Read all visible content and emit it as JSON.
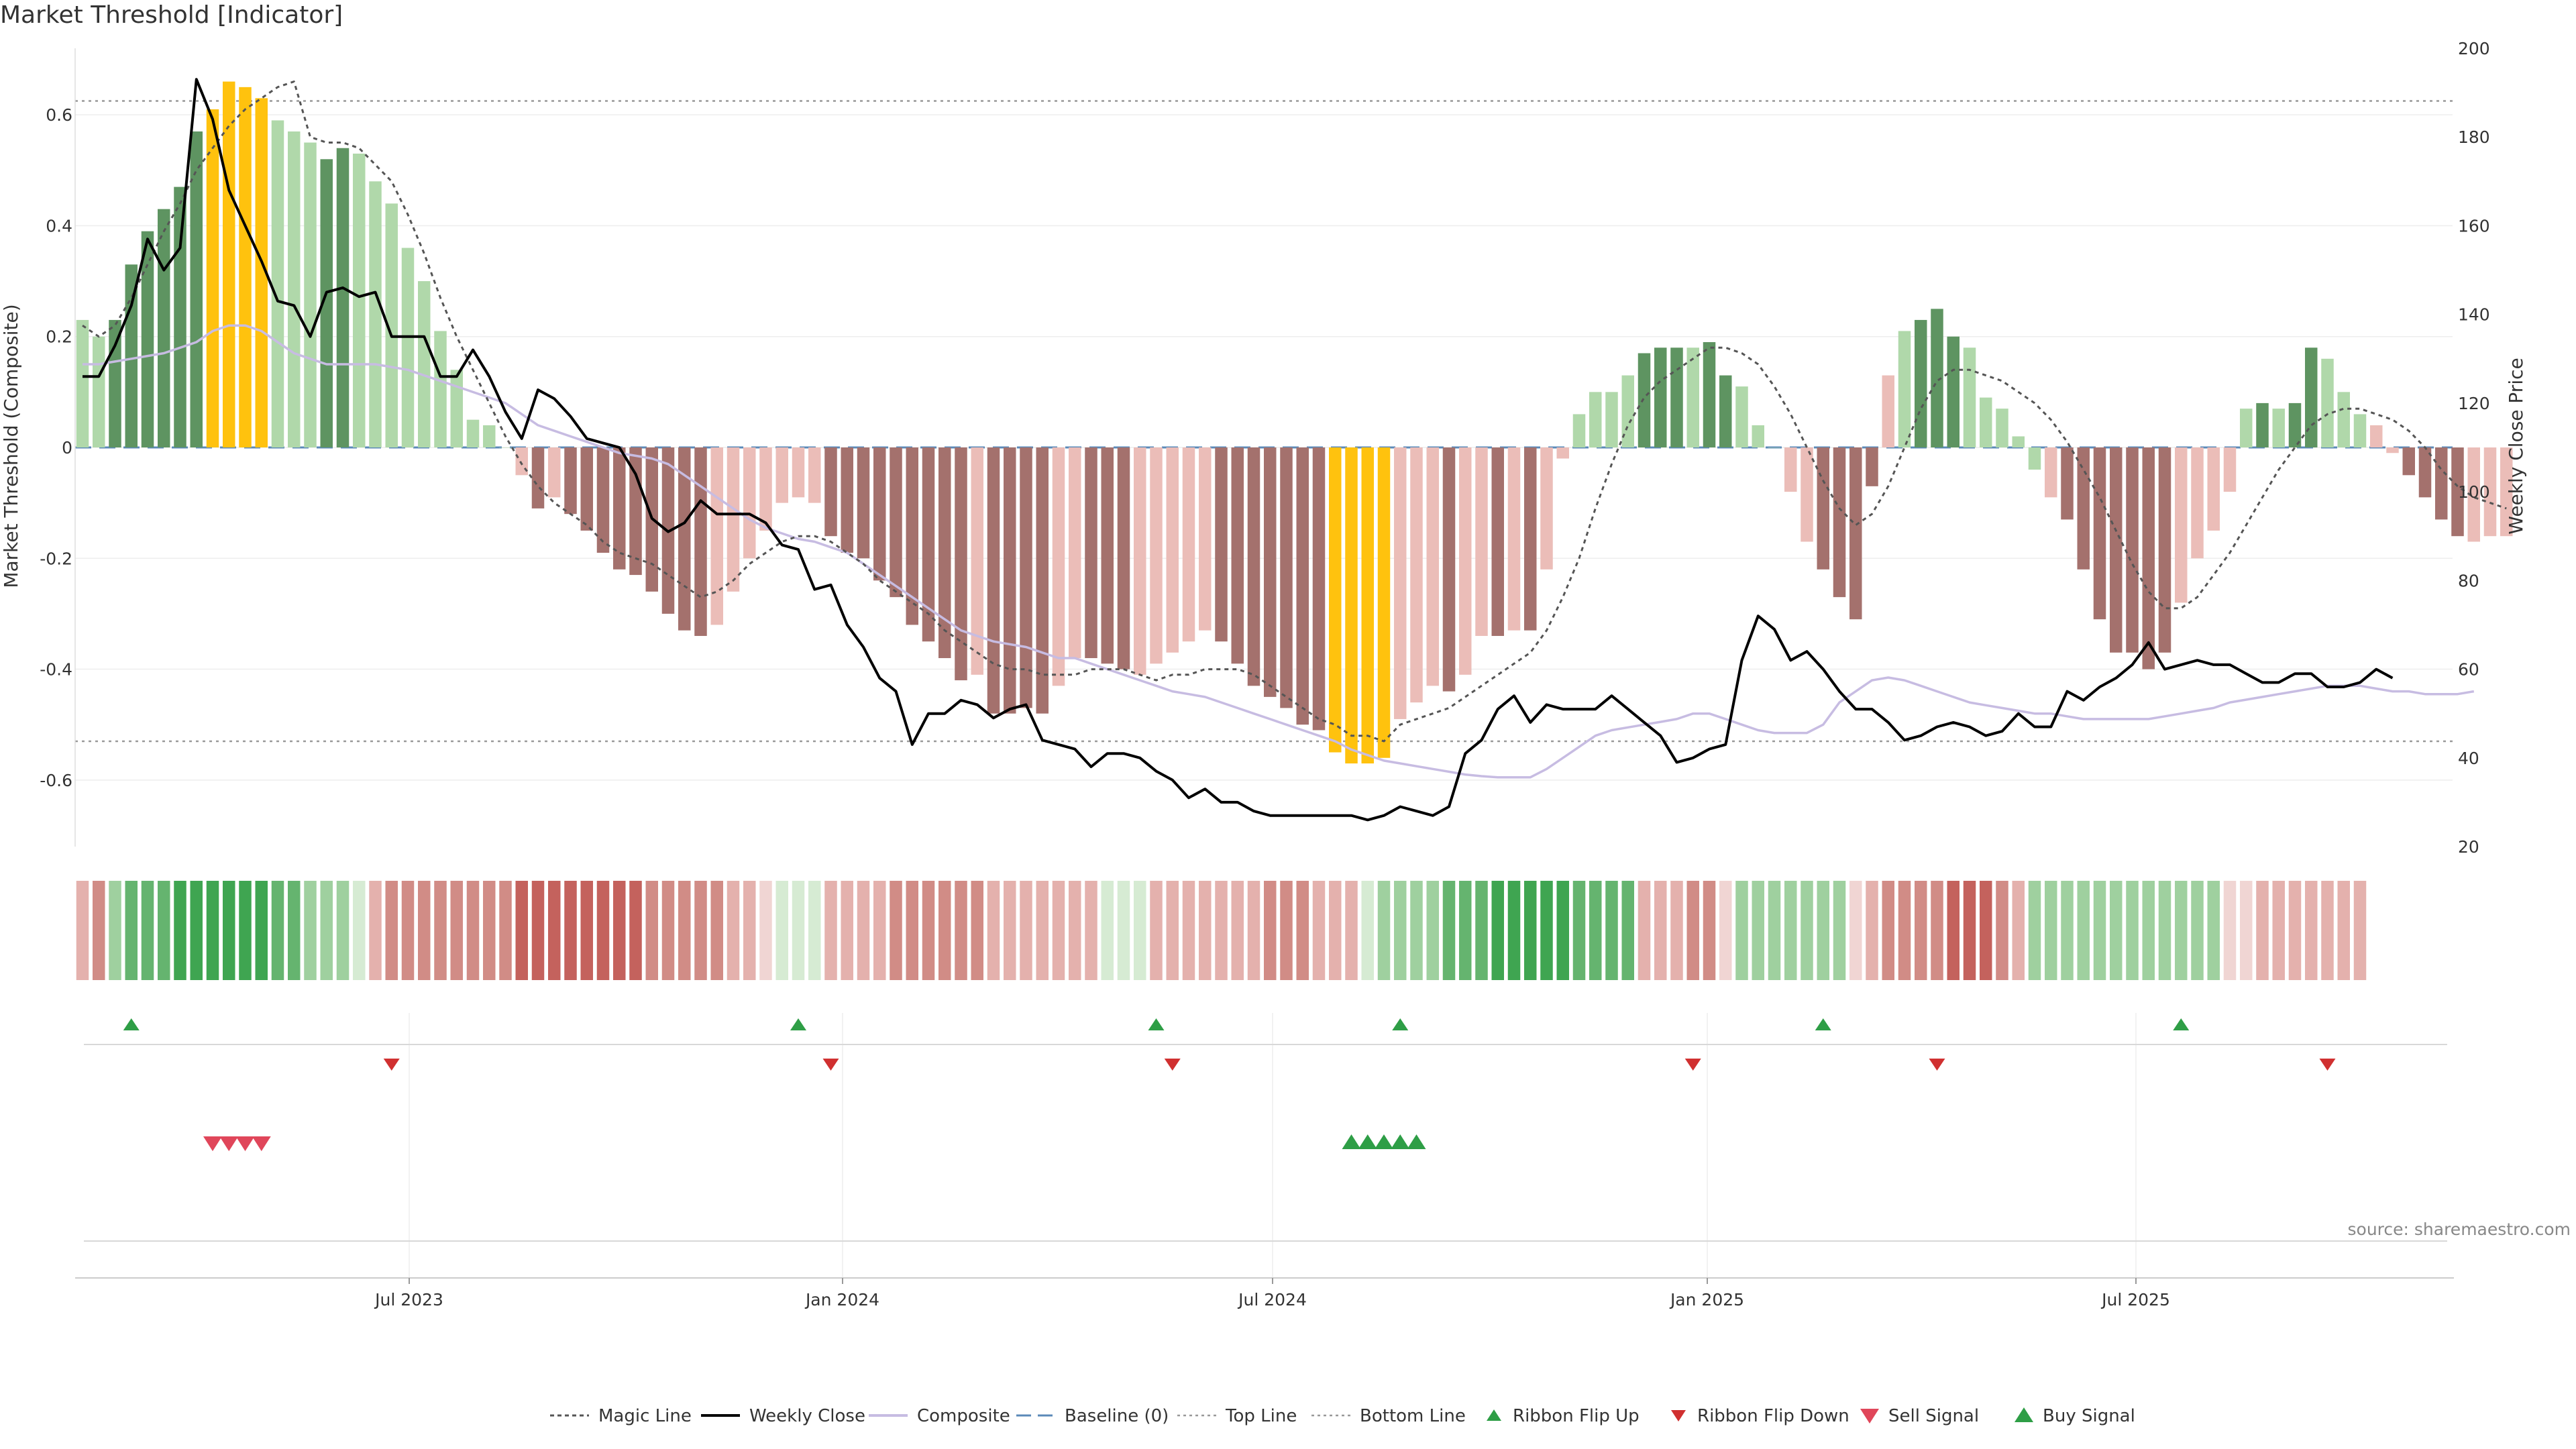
{
  "title": "Market Threshold [Indicator]",
  "source": "source: sharemaestro.com",
  "colors": {
    "background": "#ffffff",
    "grid": "#eeeeee",
    "bar_dark_green": "#5e9461",
    "bar_light_green": "#b0d8aa",
    "bar_dark_red": "#a4716d",
    "bar_light_red": "#ebbdb8",
    "bar_extreme": "#ffc20e",
    "weekly_close": "#000000",
    "composite": "#c7bce2",
    "magic_line": "#555555",
    "baseline": "#5b8ab8",
    "ribbon_up": "#2e9e46",
    "ribbon_down": "#d03030",
    "sell_signal": "#e0465a",
    "buy_signal": "#2e9e46"
  },
  "chart_data": {
    "type": "bar",
    "x_labels": [
      "Jul 2023",
      "Jan 2024",
      "Jul 2024",
      "Jan 2025",
      "Jul 2025"
    ],
    "ylabel": "Market Threshold (Composite)",
    "ylabel_right": "Weekly Close Price",
    "y_ticks": [
      "0.6",
      "0.4",
      "0.2",
      "0",
      "-0.2",
      "-0.4",
      "-0.6"
    ],
    "y_right_ticks": [
      "200",
      "180",
      "160",
      "140",
      "120",
      "100",
      "80",
      "60",
      "40",
      "20"
    ],
    "ylim": [
      -0.72,
      0.72
    ],
    "ylim_right": [
      20,
      200
    ],
    "top_line": 0.625,
    "bottom_line": -0.53,
    "grid": true,
    "bars": [
      0.23,
      0.2,
      0.23,
      0.33,
      0.39,
      0.43,
      0.47,
      0.57,
      0.61,
      0.66,
      0.65,
      0.63,
      0.59,
      0.57,
      0.55,
      0.52,
      0.54,
      0.53,
      0.48,
      0.44,
      0.36,
      0.3,
      0.21,
      0.14,
      0.05,
      0.04,
      0.0,
      -0.05,
      -0.11,
      -0.09,
      -0.12,
      -0.15,
      -0.19,
      -0.22,
      -0.23,
      -0.26,
      -0.3,
      -0.33,
      -0.34,
      -0.32,
      -0.26,
      -0.2,
      -0.15,
      -0.1,
      -0.09,
      -0.1,
      -0.16,
      -0.19,
      -0.2,
      -0.24,
      -0.27,
      -0.32,
      -0.35,
      -0.38,
      -0.42,
      -0.41,
      -0.48,
      -0.48,
      -0.47,
      -0.48,
      -0.43,
      -0.38,
      -0.38,
      -0.39,
      -0.4,
      -0.41,
      -0.39,
      -0.37,
      -0.35,
      -0.33,
      -0.35,
      -0.39,
      -0.43,
      -0.45,
      -0.47,
      -0.5,
      -0.51,
      -0.55,
      -0.57,
      -0.57,
      -0.56,
      -0.49,
      -0.46,
      -0.43,
      -0.44,
      -0.41,
      -0.34,
      -0.34,
      -0.33,
      -0.33,
      -0.22,
      -0.02,
      0.06,
      0.1,
      0.1,
      0.13,
      0.17,
      0.18,
      0.18,
      0.18,
      0.19,
      0.13,
      0.11,
      0.04,
      0.0,
      -0.08,
      -0.17,
      -0.22,
      -0.27,
      -0.31,
      -0.07,
      0.13,
      0.21,
      0.23,
      0.25,
      0.2,
      0.18,
      0.09,
      0.07,
      0.02,
      -0.04,
      -0.09,
      -0.13,
      -0.22,
      -0.31,
      -0.37,
      -0.37,
      -0.4,
      -0.37,
      -0.28,
      -0.2,
      -0.15,
      -0.08,
      0.07,
      0.08,
      0.07,
      0.08,
      0.18,
      0.16,
      0.1,
      0.06,
      0.04,
      -0.01,
      -0.05,
      -0.09,
      -0.13,
      -0.16,
      -0.17,
      -0.16,
      -0.16
    ],
    "bar_shades": [
      "lg",
      "lg",
      "dg",
      "dg",
      "dg",
      "dg",
      "dg",
      "dg",
      "y",
      "y",
      "y",
      "y",
      "lg",
      "lg",
      "lg",
      "dg",
      "dg",
      "lg",
      "lg",
      "lg",
      "lg",
      "lg",
      "lg",
      "lg",
      "lg",
      "lg",
      "lg",
      "lr",
      "dr",
      "lr",
      "dr",
      "dr",
      "dr",
      "dr",
      "dr",
      "dr",
      "dr",
      "dr",
      "dr",
      "lr",
      "lr",
      "lr",
      "lr",
      "lr",
      "lr",
      "lr",
      "dr",
      "dr",
      "dr",
      "dr",
      "dr",
      "dr",
      "dr",
      "dr",
      "dr",
      "lr",
      "dr",
      "dr",
      "dr",
      "dr",
      "lr",
      "lr",
      "dr",
      "dr",
      "dr",
      "lr",
      "lr",
      "lr",
      "lr",
      "lr",
      "dr",
      "dr",
      "dr",
      "dr",
      "dr",
      "dr",
      "dr",
      "y",
      "y",
      "y",
      "y",
      "lr",
      "lr",
      "lr",
      "dr",
      "lr",
      "lr",
      "dr",
      "lr",
      "dr",
      "lr",
      "lr",
      "lg",
      "lg",
      "lg",
      "lg",
      "dg",
      "dg",
      "dg",
      "lg",
      "dg",
      "dg",
      "lg",
      "lg",
      "lg",
      "lr",
      "lr",
      "dr",
      "dr",
      "dr",
      "dr",
      "lr",
      "lg",
      "dg",
      "dg",
      "dg",
      "lg",
      "lg",
      "lg",
      "lg",
      "lg",
      "lr",
      "dr",
      "dr",
      "dr",
      "dr",
      "dr",
      "dr",
      "dr",
      "lr",
      "lr",
      "lr",
      "lr",
      "lg",
      "dg",
      "lg",
      "dg",
      "dg",
      "lg",
      "lg",
      "lg",
      "lr",
      "lr",
      "dr",
      "dr",
      "dr",
      "dr",
      "lr",
      "lr"
    ],
    "composite": [
      0.15,
      0.15,
      0.155,
      0.16,
      0.165,
      0.17,
      0.18,
      0.19,
      0.21,
      0.22,
      0.22,
      0.21,
      0.19,
      0.17,
      0.16,
      0.15,
      0.15,
      0.15,
      0.15,
      0.145,
      0.14,
      0.13,
      0.12,
      0.11,
      0.1,
      0.09,
      0.08,
      0.06,
      0.04,
      0.03,
      0.02,
      0.01,
      0.0,
      -0.01,
      -0.015,
      -0.02,
      -0.03,
      -0.05,
      -0.07,
      -0.09,
      -0.11,
      -0.13,
      -0.145,
      -0.155,
      -0.165,
      -0.17,
      -0.18,
      -0.19,
      -0.21,
      -0.23,
      -0.25,
      -0.27,
      -0.29,
      -0.31,
      -0.33,
      -0.34,
      -0.35,
      -0.355,
      -0.36,
      -0.37,
      -0.38,
      -0.38,
      -0.39,
      -0.4,
      -0.41,
      -0.42,
      -0.43,
      -0.44,
      -0.445,
      -0.45,
      -0.46,
      -0.47,
      -0.48,
      -0.49,
      -0.5,
      -0.51,
      -0.52,
      -0.53,
      -0.545,
      -0.555,
      -0.565,
      -0.57,
      -0.575,
      -0.58,
      -0.585,
      -0.59,
      -0.593,
      -0.595,
      -0.595,
      -0.595,
      -0.58,
      -0.56,
      -0.54,
      -0.52,
      -0.51,
      -0.505,
      -0.5,
      -0.495,
      -0.49,
      -0.48,
      -0.48,
      -0.49,
      -0.5,
      -0.51,
      -0.515,
      -0.515,
      -0.515,
      -0.5,
      -0.46,
      -0.44,
      -0.42,
      -0.415,
      -0.42,
      -0.43,
      -0.44,
      -0.45,
      -0.46,
      -0.465,
      -0.47,
      -0.475,
      -0.48,
      -0.48,
      -0.485,
      -0.49,
      -0.49,
      -0.49,
      -0.49,
      -0.49,
      -0.485,
      -0.48,
      -0.475,
      -0.47,
      -0.46,
      -0.455,
      -0.45,
      -0.445,
      -0.44,
      -0.435,
      -0.43,
      -0.43,
      -0.43,
      -0.435,
      -0.44,
      -0.44,
      -0.445,
      -0.445,
      -0.445,
      -0.44
    ],
    "magic_line": [
      0.22,
      0.2,
      0.22,
      0.27,
      0.33,
      0.39,
      0.44,
      0.5,
      0.54,
      0.58,
      0.61,
      0.63,
      0.65,
      0.66,
      0.56,
      0.55,
      0.55,
      0.54,
      0.51,
      0.48,
      0.42,
      0.35,
      0.27,
      0.2,
      0.14,
      0.08,
      0.02,
      -0.03,
      -0.07,
      -0.1,
      -0.12,
      -0.14,
      -0.17,
      -0.19,
      -0.2,
      -0.21,
      -0.23,
      -0.25,
      -0.27,
      -0.26,
      -0.24,
      -0.21,
      -0.19,
      -0.17,
      -0.16,
      -0.16,
      -0.17,
      -0.19,
      -0.21,
      -0.24,
      -0.26,
      -0.28,
      -0.3,
      -0.33,
      -0.35,
      -0.37,
      -0.39,
      -0.4,
      -0.4,
      -0.41,
      -0.41,
      -0.41,
      -0.4,
      -0.4,
      -0.4,
      -0.41,
      -0.42,
      -0.41,
      -0.41,
      -0.4,
      -0.4,
      -0.4,
      -0.41,
      -0.43,
      -0.45,
      -0.47,
      -0.49,
      -0.5,
      -0.52,
      -0.52,
      -0.53,
      -0.5,
      -0.49,
      -0.48,
      -0.47,
      -0.45,
      -0.43,
      -0.41,
      -0.39,
      -0.37,
      -0.33,
      -0.27,
      -0.2,
      -0.11,
      -0.03,
      0.04,
      0.09,
      0.12,
      0.14,
      0.16,
      0.18,
      0.18,
      0.17,
      0.15,
      0.11,
      0.06,
      0.0,
      -0.06,
      -0.11,
      -0.14,
      -0.12,
      -0.07,
      0.0,
      0.07,
      0.12,
      0.14,
      0.14,
      0.13,
      0.12,
      0.1,
      0.08,
      0.05,
      0.01,
      -0.04,
      -0.09,
      -0.15,
      -0.21,
      -0.26,
      -0.29,
      -0.29,
      -0.27,
      -0.23,
      -0.19,
      -0.14,
      -0.09,
      -0.04,
      0.0,
      0.04,
      0.06,
      0.07,
      0.07,
      0.06,
      0.05,
      0.03,
      0.0,
      -0.04,
      -0.07,
      -0.09,
      -0.1,
      -0.11
    ],
    "weekly_close": [
      126,
      126,
      133,
      142,
      157,
      150,
      155,
      193,
      184,
      168,
      160,
      152,
      143,
      142,
      135,
      145,
      146,
      144,
      145,
      135,
      135,
      135,
      126,
      126,
      132,
      126,
      118,
      112,
      123,
      121,
      117,
      112,
      111,
      110,
      104,
      94,
      91,
      93,
      98,
      95,
      95,
      95,
      93,
      88,
      87,
      78,
      79,
      70,
      65,
      58,
      55,
      43,
      50,
      50,
      53,
      52,
      49,
      51,
      52,
      44,
      43,
      42,
      38,
      41,
      41,
      40,
      37,
      35,
      31,
      33,
      30,
      30,
      28,
      27,
      27,
      27,
      27,
      27,
      27,
      26,
      27,
      29,
      28,
      27,
      29,
      41,
      44,
      51,
      54,
      48,
      52,
      51,
      51,
      51,
      54,
      51,
      48,
      45,
      39,
      40,
      42,
      43,
      62,
      72,
      69,
      62,
      64,
      60,
      55,
      51,
      51,
      48,
      44,
      45,
      47,
      48,
      47,
      45,
      46,
      50,
      47,
      47,
      55,
      53,
      56,
      58,
      61,
      66,
      60,
      61,
      62,
      61,
      61,
      59,
      57,
      57,
      59,
      59,
      56,
      56,
      57,
      60,
      58
    ],
    "ribbon": [
      "lr",
      "r",
      "lg",
      "g",
      "g",
      "g",
      "dg",
      "dg",
      "dg",
      "dg",
      "dg",
      "dg",
      "g",
      "g",
      "lg",
      "lg",
      "lg",
      "pg",
      "lr",
      "r",
      "r",
      "r",
      "r",
      "r",
      "r",
      "r",
      "r",
      "dr",
      "dr",
      "dr",
      "dr",
      "dr",
      "dr",
      "dr",
      "dr",
      "r",
      "r",
      "r",
      "r",
      "r",
      "lr",
      "lr",
      "pr",
      "pg",
      "pg",
      "pg",
      "lr",
      "lr",
      "lr",
      "lr",
      "r",
      "r",
      "r",
      "r",
      "r",
      "r",
      "lr",
      "lr",
      "lr",
      "lr",
      "lr",
      "lr",
      "lr",
      "pg",
      "pg",
      "pg",
      "lr",
      "lr",
      "lr",
      "lr",
      "lr",
      "lr",
      "lr",
      "r",
      "r",
      "r",
      "lr",
      "lr",
      "lr",
      "pg",
      "lg",
      "lg",
      "lg",
      "lg",
      "g",
      "g",
      "g",
      "dg",
      "dg",
      "dg",
      "dg",
      "dg",
      "g",
      "g",
      "g",
      "g",
      "lr",
      "lr",
      "lr",
      "r",
      "r",
      "pr",
      "lg",
      "lg",
      "lg",
      "lg",
      "lg",
      "lg",
      "lg",
      "pr",
      "lr",
      "r",
      "r",
      "r",
      "r",
      "dr",
      "dr",
      "dr",
      "r",
      "lr",
      "lg",
      "lg",
      "lg",
      "lg",
      "lg",
      "lg",
      "lg",
      "lg",
      "lg",
      "lg",
      "lg",
      "lg",
      "pr",
      "pr",
      "lr",
      "lr",
      "lr",
      "lr",
      "lr",
      "lr",
      "lr"
    ],
    "ribbon_flip_up": [
      3,
      44,
      66,
      81,
      107,
      129
    ],
    "ribbon_flip_down": [
      19,
      46,
      67,
      99,
      114,
      138
    ],
    "sell_signal": [
      8,
      9,
      10,
      11
    ],
    "buy_signal": [
      78,
      79,
      80,
      81,
      82
    ],
    "legend": [
      "Magic Line",
      "Weekly Close",
      "Composite",
      "Baseline (0)",
      "Top Line",
      "Bottom Line",
      "Ribbon Flip Up",
      "Ribbon Flip Down",
      "Sell Signal",
      "Buy Signal"
    ],
    "legend_placement": "bottom-center"
  }
}
